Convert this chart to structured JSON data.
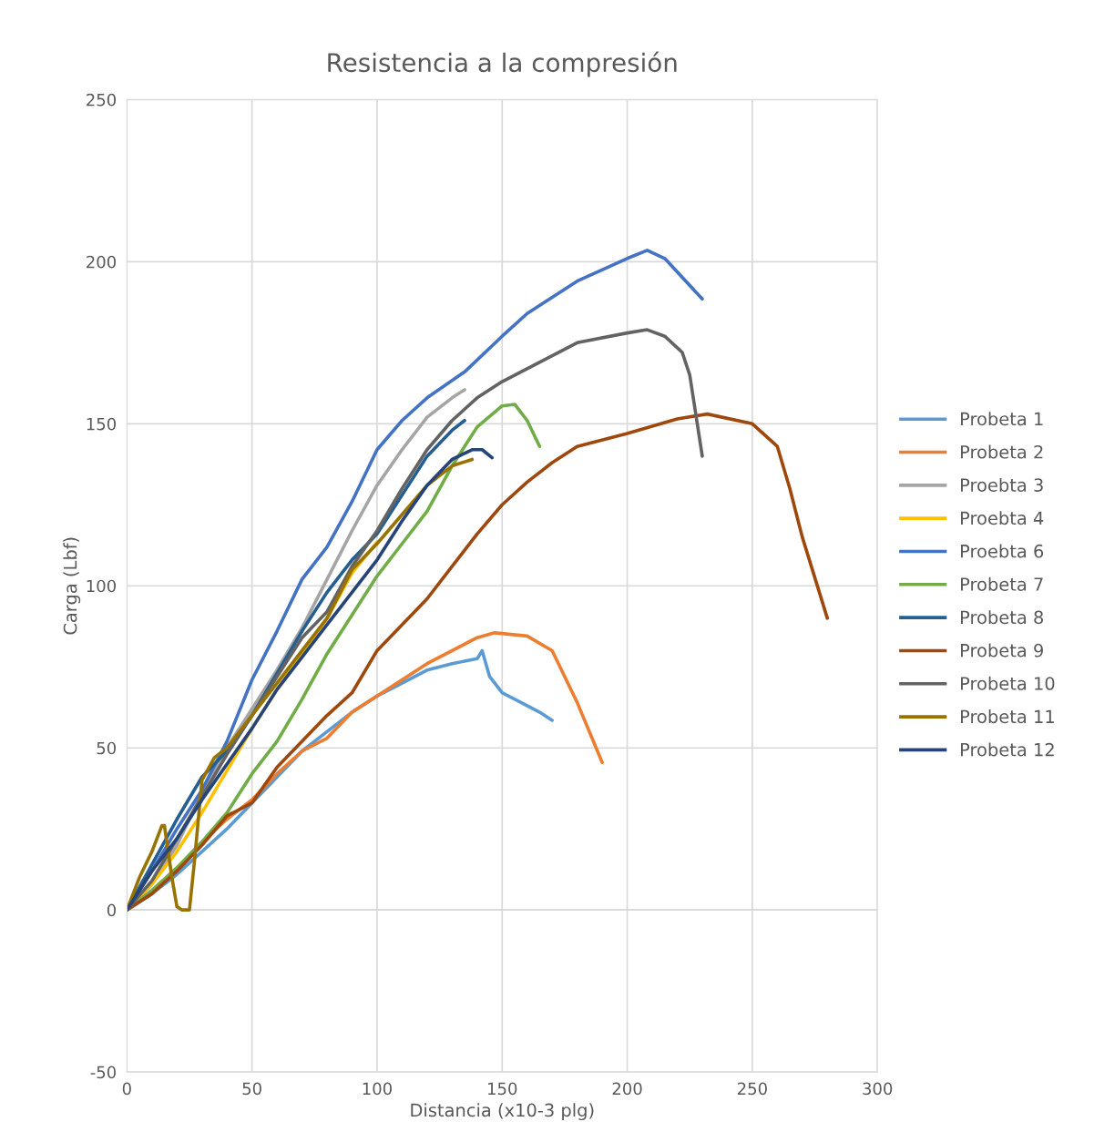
{
  "chart_data": {
    "type": "line",
    "title": "Resistencia a la compresión",
    "xlabel": "Distancia (x10-3 plg)",
    "ylabel": "Carga (Lbf)",
    "xlim": [
      0,
      300
    ],
    "xticks": [
      0,
      50,
      100,
      150,
      200,
      250,
      300
    ],
    "ylim": [
      -50,
      250
    ],
    "yticks": [
      -50,
      0,
      50,
      100,
      150,
      200,
      250
    ],
    "grid": true,
    "legend": "right",
    "marker": "none",
    "line_style": "solid",
    "series": [
      {
        "name": "Probeta 1",
        "color": "#5b9bd5",
        "x": [
          0,
          10,
          20,
          30,
          40,
          50,
          60,
          70,
          80,
          90,
          100,
          110,
          120,
          130,
          140,
          142,
          145,
          150,
          160,
          165,
          170
        ],
        "values": [
          0,
          5,
          11,
          18,
          25,
          33,
          41,
          49,
          55,
          61,
          66,
          70,
          74,
          76,
          77.5,
          80,
          72,
          67,
          63,
          61,
          58.5
        ]
      },
      {
        "name": "Probeta 2",
        "color": "#ed7d31",
        "x": [
          0,
          10,
          20,
          30,
          40,
          50,
          60,
          70,
          80,
          90,
          100,
          120,
          140,
          147,
          160,
          170,
          180,
          190
        ],
        "values": [
          0,
          6,
          13,
          21,
          28,
          34,
          42,
          49,
          53,
          61,
          66,
          76,
          84,
          85.5,
          84.5,
          80,
          64,
          45.5
        ]
      },
      {
        "name": "Proebta 3",
        "color": "#a5a5a5",
        "x": [
          0,
          10,
          20,
          30,
          40,
          50,
          60,
          70,
          80,
          90,
          100,
          110,
          120,
          130,
          135
        ],
        "values": [
          0,
          8,
          20,
          36,
          50,
          62,
          74,
          87,
          102,
          117,
          131,
          142,
          152,
          158,
          160.5
        ]
      },
      {
        "name": "Proebta 4",
        "color": "#ffc000",
        "x": [
          0,
          10,
          20,
          30,
          40,
          50,
          60,
          70,
          80,
          90,
          100
        ],
        "values": [
          0,
          8,
          18,
          30,
          43,
          56,
          68,
          79,
          90,
          104,
          113.5
        ]
      },
      {
        "name": "Proebta 6",
        "color": "#4472c4",
        "x": [
          0,
          10,
          20,
          30,
          40,
          50,
          60,
          70,
          80,
          90,
          100,
          110,
          120,
          135,
          150,
          160,
          180,
          200,
          208,
          215,
          230
        ],
        "values": [
          0,
          12,
          25,
          37,
          52,
          71,
          86,
          102,
          112,
          126,
          142,
          151,
          158,
          166,
          177,
          184,
          194,
          201,
          203.5,
          201,
          188.5
        ]
      },
      {
        "name": "Probeta 7",
        "color": "#70ad47",
        "x": [
          0,
          10,
          20,
          30,
          40,
          50,
          60,
          70,
          80,
          90,
          100,
          110,
          120,
          130,
          140,
          150,
          155,
          160,
          165
        ],
        "values": [
          0,
          6,
          13,
          21,
          30,
          42,
          52,
          65,
          79,
          91,
          103,
          113,
          123,
          137,
          149,
          155.5,
          156,
          151,
          143
        ]
      },
      {
        "name": "Probeta 8",
        "color": "#255e91",
        "x": [
          0,
          10,
          20,
          30,
          40,
          50,
          60,
          70,
          80,
          90,
          100,
          110,
          120,
          130,
          135
        ],
        "values": [
          0,
          14,
          28,
          41,
          49,
          60,
          73,
          86,
          98,
          108,
          116,
          128,
          140,
          148,
          151
        ]
      },
      {
        "name": "Probeta 9",
        "color": "#9e480e",
        "x": [
          0,
          10,
          20,
          30,
          40,
          50,
          60,
          70,
          80,
          90,
          100,
          110,
          120,
          130,
          140,
          150,
          160,
          170,
          180,
          200,
          220,
          232,
          250,
          260,
          265,
          270,
          280
        ],
        "values": [
          0,
          5,
          12,
          20,
          29,
          33,
          44,
          52,
          60,
          67,
          80,
          88,
          96,
          106,
          116,
          125,
          132,
          138,
          143,
          147,
          151.5,
          153,
          150,
          143,
          130,
          115,
          90
        ]
      },
      {
        "name": "Probeta 10",
        "color": "#636363",
        "x": [
          0,
          10,
          20,
          30,
          40,
          50,
          60,
          70,
          80,
          90,
          100,
          110,
          120,
          130,
          140,
          150,
          160,
          170,
          180,
          200,
          208,
          215,
          222,
          225,
          230
        ],
        "values": [
          0,
          9,
          22,
          35,
          48,
          60,
          72,
          84,
          92,
          106,
          117,
          130,
          142,
          151,
          158,
          163,
          167,
          171,
          175,
          178,
          179,
          177,
          172,
          165,
          140
        ]
      },
      {
        "name": "Probeta 11",
        "color": "#997300",
        "x": [
          0,
          5,
          10,
          14,
          15,
          18,
          20,
          22,
          25,
          27,
          30,
          35,
          40,
          50,
          60,
          70,
          80,
          90,
          100,
          110,
          120,
          130,
          138
        ],
        "values": [
          0,
          10,
          18,
          26,
          26,
          10,
          1,
          0,
          0,
          15,
          40,
          47,
          50,
          60,
          70,
          80,
          90,
          105,
          113,
          122,
          131,
          137,
          139
        ]
      },
      {
        "name": "Probeta 12",
        "color": "#264478",
        "x": [
          0,
          10,
          20,
          30,
          40,
          50,
          60,
          70,
          80,
          90,
          100,
          110,
          120,
          130,
          138,
          142,
          146
        ],
        "values": [
          0,
          12,
          22,
          34,
          45,
          56,
          68,
          78,
          88,
          98,
          108,
          120,
          131,
          139,
          142,
          142,
          139.5
        ]
      }
    ]
  }
}
